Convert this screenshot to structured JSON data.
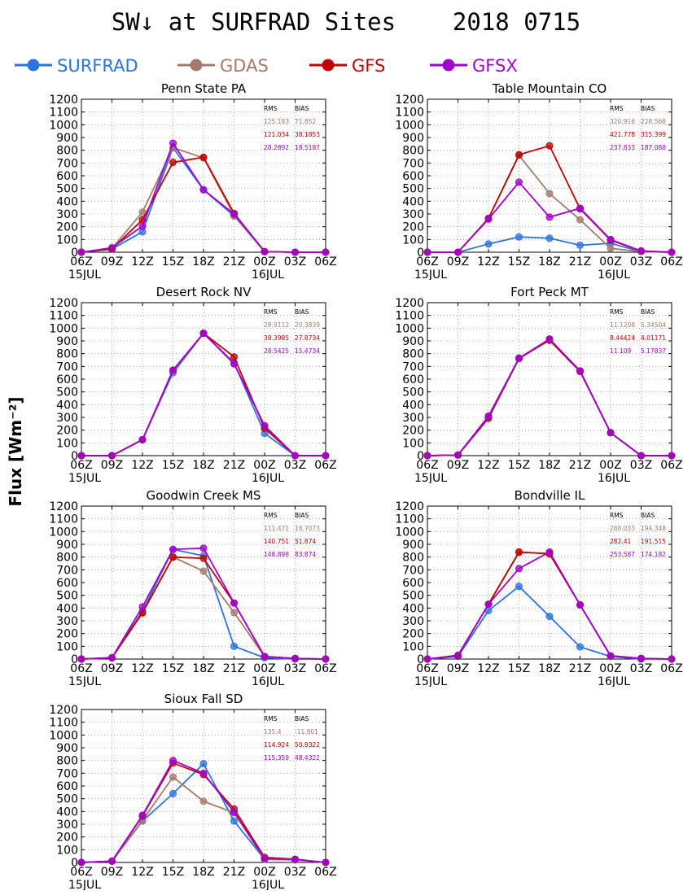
{
  "title": "SW↓ at SURFRAD Sites    2018 0715",
  "ylabel": "Flux [Wm⁻²]",
  "legend": [
    {
      "name": "SURFRAD",
      "color": "#2a73e0"
    },
    {
      "name": "GDAS",
      "color": "#a57a6a"
    },
    {
      "name": "GFS",
      "color": "#c00000"
    },
    {
      "name": "GFSX",
      "color": "#a000d0"
    }
  ],
  "stats_headers": {
    "rms": "RMS",
    "bias": "BIAS"
  },
  "chart_data": [
    {
      "type": "line",
      "title": "Penn State PA",
      "x": [
        "06Z",
        "09Z",
        "12Z",
        "15Z",
        "18Z",
        "21Z",
        "00Z",
        "03Z",
        "06Z"
      ],
      "date_labels": [
        "15JUL",
        "16JUL"
      ],
      "ylim": [
        0,
        1200
      ],
      "yticks": [
        0,
        100,
        200,
        300,
        400,
        500,
        600,
        700,
        800,
        900,
        1000,
        1100,
        1200
      ],
      "grid": true,
      "series": [
        {
          "name": "SURFRAD",
          "color": "#2a73e0",
          "values": [
            0,
            25,
            160,
            820,
            490,
            285,
            5,
            0,
            0
          ]
        },
        {
          "name": "GDAS",
          "color": "#a57a6a",
          "values": [
            0,
            30,
            315,
            820,
            740,
            290,
            5,
            0,
            0
          ]
        },
        {
          "name": "GFS",
          "color": "#c00000",
          "values": [
            0,
            25,
            255,
            705,
            745,
            305,
            5,
            0,
            0
          ]
        },
        {
          "name": "GFSX",
          "color": "#a000d0",
          "values": [
            0,
            35,
            205,
            855,
            490,
            300,
            5,
            0,
            0
          ]
        }
      ],
      "stats": [
        {
          "rms": "125.183",
          "bias": "71.852",
          "color": "#a57a6a"
        },
        {
          "rms": "121.034",
          "bias": "38.1853",
          "color": "#c00000"
        },
        {
          "rms": "28.2892",
          "bias": "18.5187",
          "color": "#a000d0"
        }
      ]
    },
    {
      "type": "line",
      "title": "Table Mountain CO",
      "x": [
        "06Z",
        "09Z",
        "12Z",
        "15Z",
        "18Z",
        "21Z",
        "00Z",
        "03Z",
        "06Z"
      ],
      "date_labels": [
        "15JUL",
        "16JUL"
      ],
      "ylim": [
        0,
        1200
      ],
      "yticks": [
        0,
        100,
        200,
        300,
        400,
        500,
        600,
        700,
        800,
        900,
        1000,
        1100,
        1200
      ],
      "grid": true,
      "series": [
        {
          "name": "SURFRAD",
          "color": "#2a73e0",
          "values": [
            0,
            0,
            65,
            120,
            110,
            55,
            70,
            5,
            0
          ]
        },
        {
          "name": "GDAS",
          "color": "#a57a6a",
          "values": [
            0,
            0,
            265,
            760,
            460,
            255,
            30,
            5,
            0
          ]
        },
        {
          "name": "GFS",
          "color": "#c00000",
          "values": [
            0,
            0,
            265,
            765,
            835,
            340,
            95,
            10,
            0
          ]
        },
        {
          "name": "GFSX",
          "color": "#a000d0",
          "values": [
            0,
            0,
            260,
            550,
            275,
            345,
            100,
            10,
            0
          ]
        }
      ],
      "stats": [
        {
          "rms": "320.916",
          "bias": "228.568",
          "color": "#a57a6a"
        },
        {
          "rms": "421.778",
          "bias": "315.399",
          "color": "#c00000"
        },
        {
          "rms": "237.833",
          "bias": "187.088",
          "color": "#a000d0"
        }
      ]
    },
    {
      "type": "line",
      "title": "Desert Rock NV",
      "x": [
        "06Z",
        "09Z",
        "12Z",
        "15Z",
        "18Z",
        "21Z",
        "00Z",
        "03Z",
        "06Z"
      ],
      "date_labels": [
        "15JUL",
        "16JUL"
      ],
      "ylim": [
        0,
        1200
      ],
      "yticks": [
        0,
        100,
        200,
        300,
        400,
        500,
        600,
        700,
        800,
        900,
        1000,
        1100,
        1200
      ],
      "grid": true,
      "series": [
        {
          "name": "SURFRAD",
          "color": "#2a73e0",
          "values": [
            0,
            0,
            125,
            650,
            960,
            730,
            175,
            0,
            0
          ]
        },
        {
          "name": "GDAS",
          "color": "#a57a6a",
          "values": [
            0,
            0,
            125,
            665,
            960,
            725,
            235,
            0,
            0
          ]
        },
        {
          "name": "GFS",
          "color": "#c00000",
          "values": [
            0,
            0,
            125,
            670,
            960,
            775,
            215,
            0,
            0
          ]
        },
        {
          "name": "GFSX",
          "color": "#a000d0",
          "values": [
            0,
            0,
            125,
            670,
            960,
            720,
            235,
            0,
            0
          ]
        }
      ],
      "stats": [
        {
          "rms": "28.9112",
          "bias": "20.3839",
          "color": "#a57a6a"
        },
        {
          "rms": "38.3985",
          "bias": "27.8734",
          "color": "#c00000"
        },
        {
          "rms": "28.5425",
          "bias": "15.4734",
          "color": "#a000d0"
        }
      ]
    },
    {
      "type": "line",
      "title": "Fort Peck MT",
      "x": [
        "06Z",
        "09Z",
        "12Z",
        "15Z",
        "18Z",
        "21Z",
        "00Z",
        "03Z",
        "06Z"
      ],
      "date_labels": [
        "15JUL",
        "16JUL"
      ],
      "ylim": [
        0,
        1200
      ],
      "yticks": [
        0,
        100,
        200,
        300,
        400,
        500,
        600,
        700,
        800,
        900,
        1000,
        1100,
        1200
      ],
      "grid": true,
      "series": [
        {
          "name": "SURFRAD",
          "color": "#2a73e0",
          "values": [
            0,
            5,
            290,
            760,
            910,
            665,
            180,
            0,
            0
          ]
        },
        {
          "name": "GDAS",
          "color": "#a57a6a",
          "values": [
            0,
            5,
            295,
            760,
            910,
            665,
            180,
            0,
            0
          ]
        },
        {
          "name": "GFS",
          "color": "#c00000",
          "values": [
            0,
            5,
            300,
            765,
            905,
            660,
            180,
            0,
            0
          ]
        },
        {
          "name": "GFSX",
          "color": "#a000d0",
          "values": [
            0,
            5,
            310,
            765,
            915,
            665,
            180,
            0,
            0
          ]
        }
      ],
      "stats": [
        {
          "rms": "11.1208",
          "bias": "5.34504",
          "color": "#a57a6a"
        },
        {
          "rms": "8.44424",
          "bias": "4.01171",
          "color": "#c00000"
        },
        {
          "rms": "11.109",
          "bias": "5.17837",
          "color": "#a000d0"
        }
      ]
    },
    {
      "type": "line",
      "title": "Goodwin Creek MS",
      "x": [
        "06Z",
        "09Z",
        "12Z",
        "15Z",
        "18Z",
        "21Z",
        "00Z",
        "03Z",
        "06Z"
      ],
      "date_labels": [
        "15JUL",
        "16JUL"
      ],
      "ylim": [
        0,
        1200
      ],
      "yticks": [
        0,
        100,
        200,
        300,
        400,
        500,
        600,
        700,
        800,
        900,
        1000,
        1100,
        1200
      ],
      "grid": true,
      "series": [
        {
          "name": "SURFRAD",
          "color": "#2a73e0",
          "values": [
            0,
            10,
            375,
            860,
            810,
            100,
            10,
            0,
            0
          ]
        },
        {
          "name": "GDAS",
          "color": "#a57a6a",
          "values": [
            0,
            10,
            360,
            800,
            690,
            365,
            20,
            5,
            0
          ]
        },
        {
          "name": "GFS",
          "color": "#c00000",
          "values": [
            0,
            10,
            365,
            800,
            790,
            440,
            20,
            5,
            0
          ]
        },
        {
          "name": "GFSX",
          "color": "#a000d0",
          "values": [
            0,
            10,
            410,
            860,
            870,
            440,
            20,
            5,
            0
          ]
        }
      ],
      "stats": [
        {
          "rms": "111.471",
          "bias": "18.7073",
          "color": "#a57a6a"
        },
        {
          "rms": "140.751",
          "bias": "51.874",
          "color": "#c00000"
        },
        {
          "rms": "148.898",
          "bias": "83.874",
          "color": "#a000d0"
        }
      ]
    },
    {
      "type": "line",
      "title": "Bondville IL",
      "x": [
        "06Z",
        "09Z",
        "12Z",
        "15Z",
        "18Z",
        "21Z",
        "00Z",
        "03Z",
        "06Z"
      ],
      "date_labels": [
        "15JUL",
        "16JUL"
      ],
      "ylim": [
        0,
        1200
      ],
      "yticks": [
        0,
        100,
        200,
        300,
        400,
        500,
        600,
        700,
        800,
        900,
        1000,
        1100,
        1200
      ],
      "grid": true,
      "series": [
        {
          "name": "SURFRAD",
          "color": "#2a73e0",
          "values": [
            0,
            20,
            380,
            570,
            335,
            95,
            20,
            0,
            0
          ]
        },
        {
          "name": "GDAS",
          "color": "#a57a6a",
          "values": [
            0,
            25,
            430,
            835,
            830,
            425,
            25,
            5,
            0
          ]
        },
        {
          "name": "GFS",
          "color": "#c00000",
          "values": [
            0,
            25,
            430,
            840,
            825,
            425,
            25,
            5,
            0
          ]
        },
        {
          "name": "GFSX",
          "color": "#a000d0",
          "values": [
            0,
            30,
            430,
            710,
            840,
            425,
            25,
            5,
            0
          ]
        }
      ],
      "stats": [
        {
          "rms": "288.033",
          "bias": "194.348",
          "color": "#a57a6a"
        },
        {
          "rms": "282.41",
          "bias": "191.515",
          "color": "#c00000"
        },
        {
          "rms": "253.587",
          "bias": "174.182",
          "color": "#a000d0"
        }
      ]
    },
    {
      "type": "line",
      "title": "Sioux Fall SD",
      "x": [
        "06Z",
        "09Z",
        "12Z",
        "15Z",
        "18Z",
        "21Z",
        "00Z",
        "03Z",
        "06Z"
      ],
      "date_labels": [
        "15JUL",
        "16JUL"
      ],
      "ylim": [
        0,
        1200
      ],
      "yticks": [
        0,
        100,
        200,
        300,
        400,
        500,
        600,
        700,
        800,
        900,
        1000,
        1100,
        1200
      ],
      "grid": true,
      "series": [
        {
          "name": "SURFRAD",
          "color": "#2a73e0",
          "values": [
            0,
            10,
            325,
            540,
            775,
            325,
            25,
            20,
            0
          ]
        },
        {
          "name": "GDAS",
          "color": "#a57a6a",
          "values": [
            0,
            10,
            330,
            670,
            480,
            390,
            25,
            20,
            0
          ]
        },
        {
          "name": "GFS",
          "color": "#c00000",
          "values": [
            0,
            10,
            365,
            780,
            690,
            420,
            40,
            25,
            0
          ]
        },
        {
          "name": "GFSX",
          "color": "#a000d0",
          "values": [
            0,
            10,
            370,
            800,
            700,
            395,
            30,
            25,
            0
          ]
        }
      ],
      "stats": [
        {
          "rms": "135.4",
          "bias": "-11.901",
          "color": "#a57a6a"
        },
        {
          "rms": "114.924",
          "bias": "50.9322",
          "color": "#c00000"
        },
        {
          "rms": "115.359",
          "bias": "48.4322",
          "color": "#a000d0"
        }
      ]
    }
  ]
}
